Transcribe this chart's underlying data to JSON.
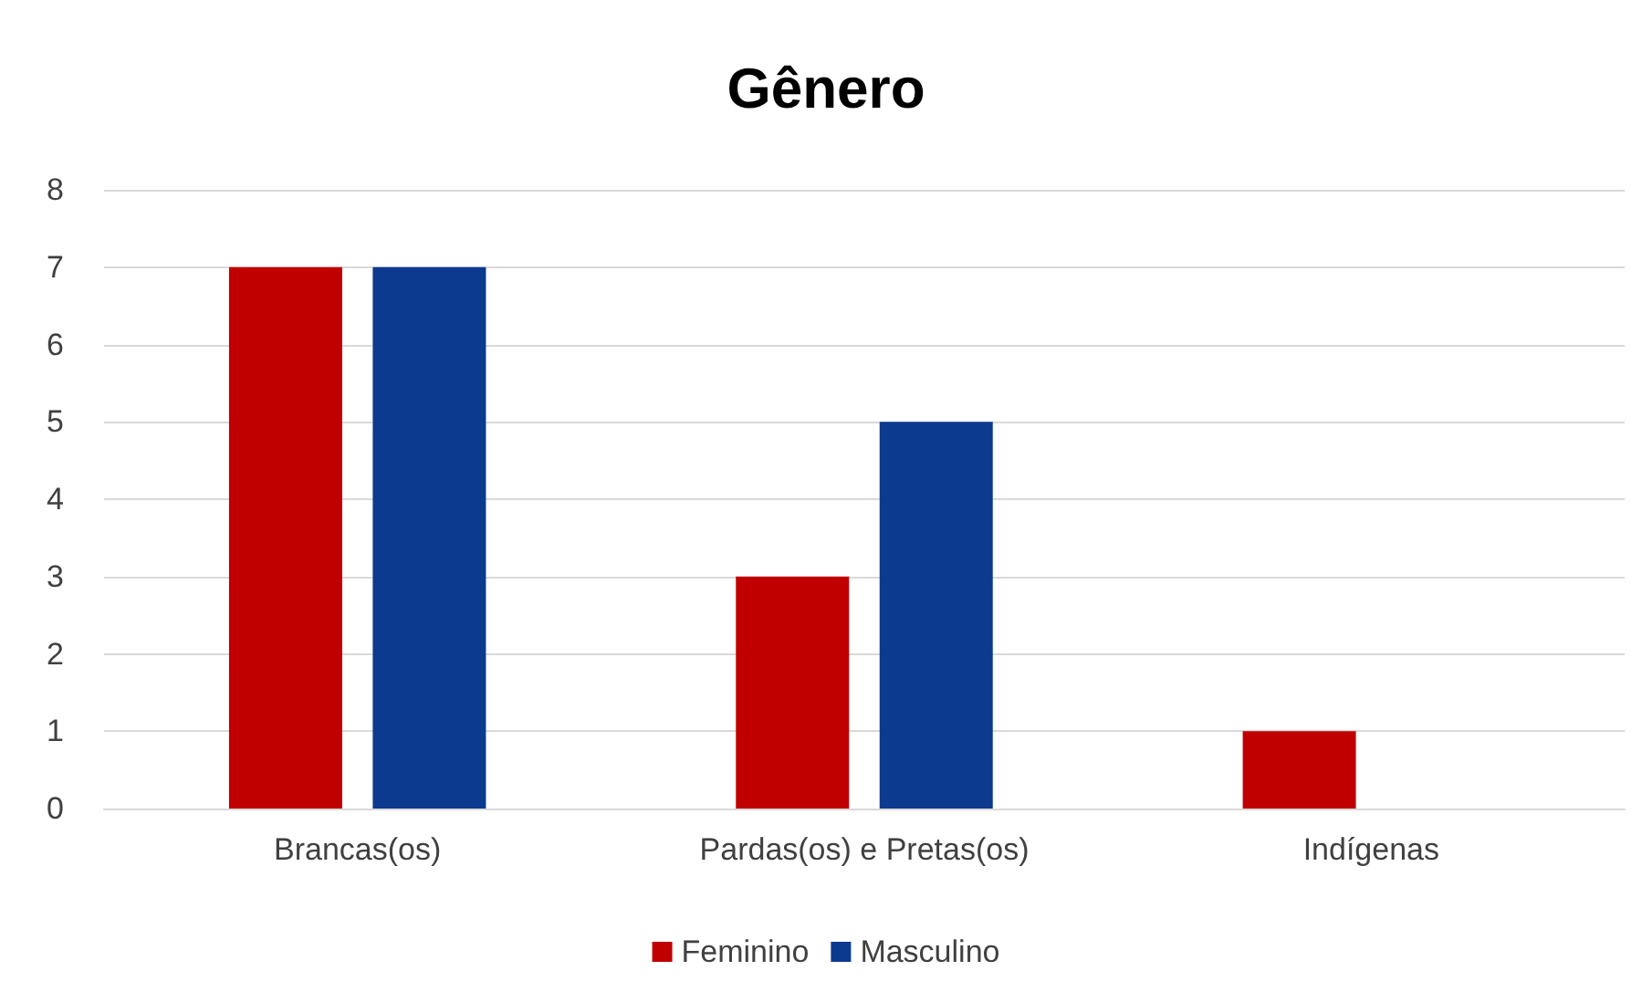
{
  "chart_data": {
    "type": "bar",
    "title": "Gênero",
    "categories": [
      "Brancas(os)",
      "Pardas(os) e Pretas(os)",
      "Indígenas"
    ],
    "series": [
      {
        "name": "Feminino",
        "color": "#c00000",
        "values": [
          7,
          3,
          1
        ]
      },
      {
        "name": "Masculino",
        "color": "#0b3a8f",
        "values": [
          7,
          5,
          0
        ]
      }
    ],
    "ylim": [
      0,
      8
    ],
    "yticks": [
      0,
      1,
      2,
      3,
      4,
      5,
      6,
      7,
      8
    ],
    "grid": "y",
    "legend": "bottom"
  }
}
